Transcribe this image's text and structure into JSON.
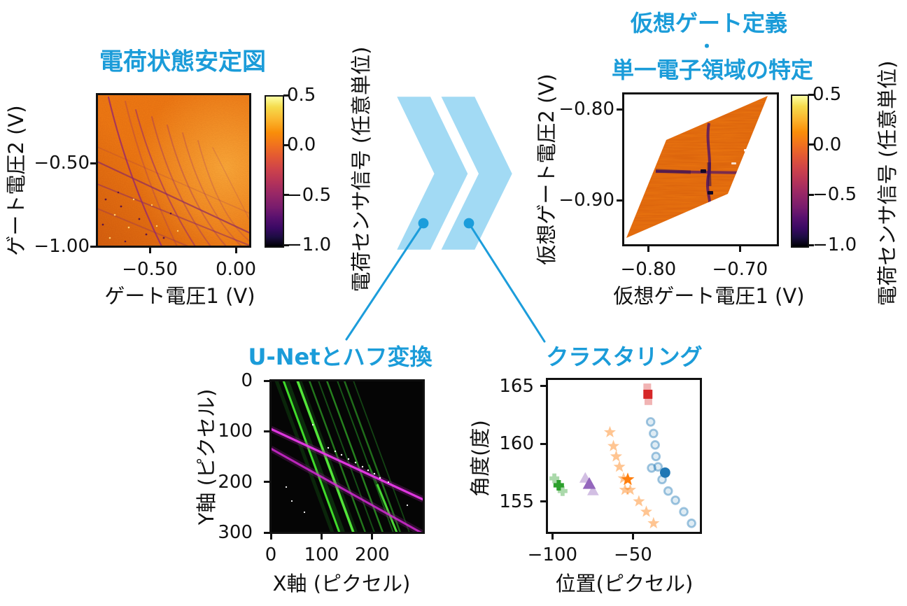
{
  "colors": {
    "accent_blue": "#1b9cd9",
    "arrow_fill": "#a2daf4",
    "callout_line": "#1c9ddb",
    "axis_black": "#111111",
    "cluster_green": "#2ca02c",
    "cluster_purple": "#9467bd",
    "cluster_orange": "#ff7f0e",
    "cluster_blue": "#1f77b4",
    "cluster_red": "#d62728"
  },
  "chart_data": [
    {
      "id": "stability-diagram",
      "type": "heatmap",
      "title": "電荷状態安定図",
      "xlabel": "ゲート電圧1 (V)",
      "ylabel": "ゲート電圧2 (V)",
      "xlim": [
        -0.805,
        0.081
      ],
      "ylim": [
        -1.0,
        -0.088
      ],
      "x_ticks": [
        {
          "value": -0.5,
          "label": "−0.50"
        },
        {
          "value": 0.0,
          "label": "0.00"
        }
      ],
      "y_ticks": [
        {
          "value": -0.5,
          "label": "−0.50"
        },
        {
          "value": -1.0,
          "label": "−1.00"
        }
      ],
      "colorbar": {
        "label": "電荷センサ信号 (任意単位)",
        "range": [
          -1.0,
          0.5
        ],
        "colormap": "inferno",
        "ticks": [
          {
            "value": 0.5,
            "label": "0.5"
          },
          {
            "value": 0.0,
            "label": "0.0"
          },
          {
            "value": -0.5,
            "label": "−0.5"
          },
          {
            "value": -1.0,
            "label": "−1.0"
          }
        ]
      },
      "description": "オレンジ色のヒートマップ。急勾配と緩勾配の暗い電荷遷移線が交差する。"
    },
    {
      "id": "virtual-gate-map",
      "type": "heatmap",
      "title": "仮想ゲート定義・単一電子領域の特定",
      "title_lines": [
        "仮想ゲート定義",
        "・",
        "単一電子領域の特定"
      ],
      "xlabel": "仮想ゲート電圧1 (V)",
      "ylabel": "仮想ゲート電圧2 (V)",
      "xlim": [
        -0.827,
        -0.659
      ],
      "ylim": [
        -0.949,
        -0.783
      ],
      "x_ticks": [
        {
          "value": -0.8,
          "label": "−0.80"
        },
        {
          "value": -0.7,
          "label": "−0.70"
        }
      ],
      "y_ticks": [
        {
          "value": -0.8,
          "label": "−0.80"
        },
        {
          "value": -0.9,
          "label": "−0.90"
        }
      ],
      "colorbar": {
        "label": "電荷センサ信号 (任意単位)",
        "range": [
          -1.0,
          0.5
        ],
        "colormap": "inferno",
        "ticks": [
          {
            "value": 0.5,
            "label": "0.5"
          },
          {
            "value": 0.0,
            "label": "0.0"
          },
          {
            "value": -0.5,
            "label": "−0.5"
          },
          {
            "value": -1.0,
            "label": "−1.0"
          }
        ]
      },
      "description": "平行四辺形状に変換されたヒートマップ。中央で縦横の暗い遷移線が交差する。"
    },
    {
      "id": "unet-hough",
      "type": "image",
      "title": "U-Netとハフ変換",
      "xlabel": "X軸 (ピクセル)",
      "ylabel": "Y軸 (ピクセル)",
      "xlim": [
        0,
        301
      ],
      "ylim": [
        0,
        300
      ],
      "y_down": true,
      "x_ticks": [
        {
          "value": 0,
          "label": "0"
        },
        {
          "value": 100,
          "label": "100"
        },
        {
          "value": 200,
          "label": "200"
        }
      ],
      "y_ticks": [
        {
          "value": 0,
          "label": "0"
        },
        {
          "value": 100,
          "label": "100"
        },
        {
          "value": 200,
          "label": "200"
        },
        {
          "value": 300,
          "label": "300"
        }
      ],
      "description": "黒地に急勾配の緑色の検出線群と、2本のマゼンタ色のハフ変換直線。"
    },
    {
      "id": "clustering",
      "type": "scatter",
      "title": "クラスタリング",
      "xlabel": "位置(ピクセル)",
      "ylabel": "角度(度)",
      "xlim": [
        -103.2,
        -8.0
      ],
      "ylim": [
        152.3,
        165.6
      ],
      "x_ticks": [
        {
          "value": -100,
          "label": "−100"
        },
        {
          "value": -50,
          "label": "−50"
        }
      ],
      "y_ticks": [
        {
          "value": 155,
          "label": "155"
        },
        {
          "value": 160,
          "label": "160"
        },
        {
          "value": 165,
          "label": "165"
        }
      ],
      "clusters": [
        {
          "name": "cluster-green",
          "marker": "plus",
          "color": "#2ca02c",
          "points": [
            [
              -98.8,
              157.0
            ],
            [
              -93.7,
              155.9
            ]
          ],
          "representative": [
            -96.1,
            156.4
          ]
        },
        {
          "name": "cluster-purple",
          "marker": "triangle",
          "color": "#9467bd",
          "points": [
            [
              -79.6,
              157.0
            ],
            [
              -74.8,
              155.9
            ]
          ],
          "representative": [
            -77.1,
            156.5
          ]
        },
        {
          "name": "cluster-orange",
          "marker": "star",
          "color": "#ff7f0e",
          "points": [
            [
              -64.3,
              161.0
            ],
            [
              -62.1,
              159.8
            ],
            [
              -60.4,
              158.9
            ],
            [
              -58.4,
              158.0
            ],
            [
              -55.8,
              157.0
            ],
            [
              -54.9,
              156.0
            ],
            [
              -51.7,
              156.0
            ],
            [
              -46.3,
              155.0
            ],
            [
              -41.7,
              154.1
            ],
            [
              -37.2,
              153.1
            ]
          ],
          "representative": [
            -53.2,
            156.9
          ]
        },
        {
          "name": "cluster-blue",
          "marker": "circle",
          "color": "#1f77b4",
          "points": [
            [
              -39.0,
              161.9
            ],
            [
              -37.2,
              160.9
            ],
            [
              -36.2,
              159.9
            ],
            [
              -35.7,
              158.9
            ],
            [
              -38.4,
              157.9
            ],
            [
              -34.4,
              158.0
            ],
            [
              -31.9,
              156.9
            ],
            [
              -28.1,
              155.9
            ],
            [
              -23.6,
              155.1
            ],
            [
              -18.4,
              154.1
            ],
            [
              -13.6,
              153.1
            ]
          ],
          "representative": [
            -30.0,
            157.5
          ]
        },
        {
          "name": "cluster-red",
          "marker": "square",
          "color": "#d62728",
          "points": [
            [
              -41.1,
              164.9
            ],
            [
              -40.4,
              163.7
            ]
          ],
          "representative": [
            -40.7,
            164.3
          ]
        }
      ]
    }
  ]
}
